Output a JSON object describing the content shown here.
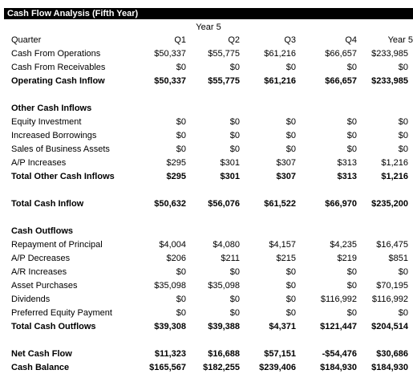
{
  "title": "Cash Flow Analysis (Fifth Year)",
  "year_header": "Year 5",
  "columns": [
    "Q1",
    "Q2",
    "Q3",
    "Q4",
    "Year 5"
  ],
  "header_label": "Quarter",
  "rows": {
    "cash_from_operations": {
      "label": "Cash From Operations",
      "values": [
        "$50,337",
        "$55,775",
        "$61,216",
        "$66,657",
        "$233,985"
      ]
    },
    "cash_from_receivables": {
      "label": "Cash From Receivables",
      "values": [
        "$0",
        "$0",
        "$0",
        "$0",
        "$0"
      ]
    },
    "operating_cash_inflow": {
      "label": "Operating Cash Inflow",
      "values": [
        "$50,337",
        "$55,775",
        "$61,216",
        "$66,657",
        "$233,985"
      ]
    },
    "other_cash_inflows": {
      "label": "Other Cash Inflows"
    },
    "equity_investment": {
      "label": "Equity Investment",
      "values": [
        "$0",
        "$0",
        "$0",
        "$0",
        "$0"
      ]
    },
    "increased_borrowings": {
      "label": "Increased Borrowings",
      "values": [
        "$0",
        "$0",
        "$0",
        "$0",
        "$0"
      ]
    },
    "sales_of_business_assets": {
      "label": "Sales of Business Assets",
      "values": [
        "$0",
        "$0",
        "$0",
        "$0",
        "$0"
      ]
    },
    "ap_increases": {
      "label": "A/P Increases",
      "values": [
        "$295",
        "$301",
        "$307",
        "$313",
        "$1,216"
      ]
    },
    "total_other_cash_inflows": {
      "label": "Total Other Cash Inflows",
      "values": [
        "$295",
        "$301",
        "$307",
        "$313",
        "$1,216"
      ]
    },
    "total_cash_inflow": {
      "label": "Total Cash Inflow",
      "values": [
        "$50,632",
        "$56,076",
        "$61,522",
        "$66,970",
        "$235,200"
      ]
    },
    "cash_outflows": {
      "label": "Cash Outflows"
    },
    "repayment_of_principal": {
      "label": "Repayment of Principal",
      "values": [
        "$4,004",
        "$4,080",
        "$4,157",
        "$4,235",
        "$16,475"
      ]
    },
    "ap_decreases": {
      "label": "A/P Decreases",
      "values": [
        "$206",
        "$211",
        "$215",
        "$219",
        "$851"
      ]
    },
    "ar_increases": {
      "label": "A/R Increases",
      "values": [
        "$0",
        "$0",
        "$0",
        "$0",
        "$0"
      ]
    },
    "asset_purchases": {
      "label": "Asset Purchases",
      "values": [
        "$35,098",
        "$35,098",
        "$0",
        "$0",
        "$70,195"
      ]
    },
    "dividends": {
      "label": "Dividends",
      "values": [
        "$0",
        "$0",
        "$0",
        "$116,992",
        "$116,992"
      ]
    },
    "preferred_equity_payment": {
      "label": "Preferred Equity Payment",
      "values": [
        "$0",
        "$0",
        "$0",
        "$0",
        "$0"
      ]
    },
    "total_cash_outflows": {
      "label": "Total Cash Outflows",
      "values": [
        "$39,308",
        "$39,388",
        "$4,371",
        "$121,447",
        "$204,514"
      ]
    },
    "net_cash_flow": {
      "label": "Net Cash Flow",
      "values": [
        "$11,323",
        "$16,688",
        "$57,151",
        "-$54,476",
        "$30,686"
      ]
    },
    "cash_balance": {
      "label": "Cash Balance",
      "values": [
        "$165,567",
        "$182,255",
        "$239,406",
        "$184,930",
        "$184,930"
      ]
    }
  }
}
